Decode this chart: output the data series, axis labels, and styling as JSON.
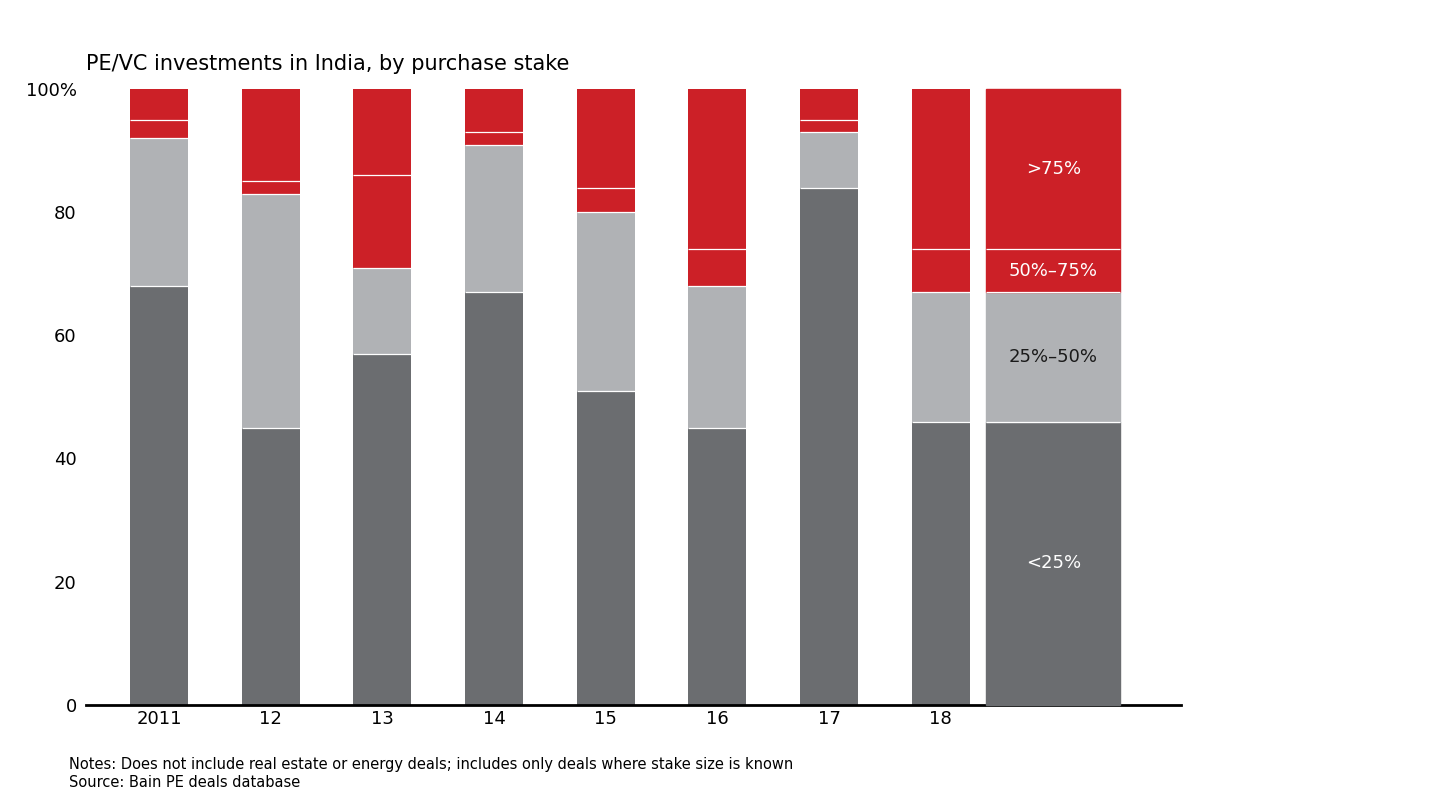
{
  "title": "PE/VC investments in India, by purchase stake",
  "categories": [
    "2011",
    "12",
    "13",
    "14",
    "15",
    "16",
    "17",
    "18"
  ],
  "segments": {
    "lt25": [
      68,
      45,
      57,
      67,
      51,
      45,
      84,
      46
    ],
    "s25_50": [
      24,
      38,
      14,
      24,
      29,
      23,
      9,
      21
    ],
    "s50_75": [
      3,
      2,
      15,
      2,
      4,
      6,
      2,
      7
    ],
    "gt75": [
      5,
      15,
      14,
      7,
      16,
      26,
      5,
      26
    ]
  },
  "colors": {
    "lt25": "#6b6d70",
    "s25_50": "#b0b2b5",
    "s50_75": "#cc2027",
    "gt75": "#cc2027"
  },
  "text_labels": {
    "lt25": "<25%",
    "s25_50": "25%–50%",
    "s50_75": "50%–75%",
    "gt75": ">75%"
  },
  "label_text_colors": {
    "lt25": "white",
    "s25_50": "#1a1a1a",
    "s50_75": "white",
    "gt75": "white"
  },
  "notes_line1": "Notes: Does not include real estate or energy deals; includes only deals where stake size is known",
  "notes_line2": "Source: Bain PE deals database",
  "ylim": [
    0,
    100
  ],
  "bar_width": 0.52,
  "background_color": "#ffffff",
  "title_fontsize": 15,
  "tick_fontsize": 13,
  "note_fontsize": 10.5,
  "label_fontsize": 13
}
